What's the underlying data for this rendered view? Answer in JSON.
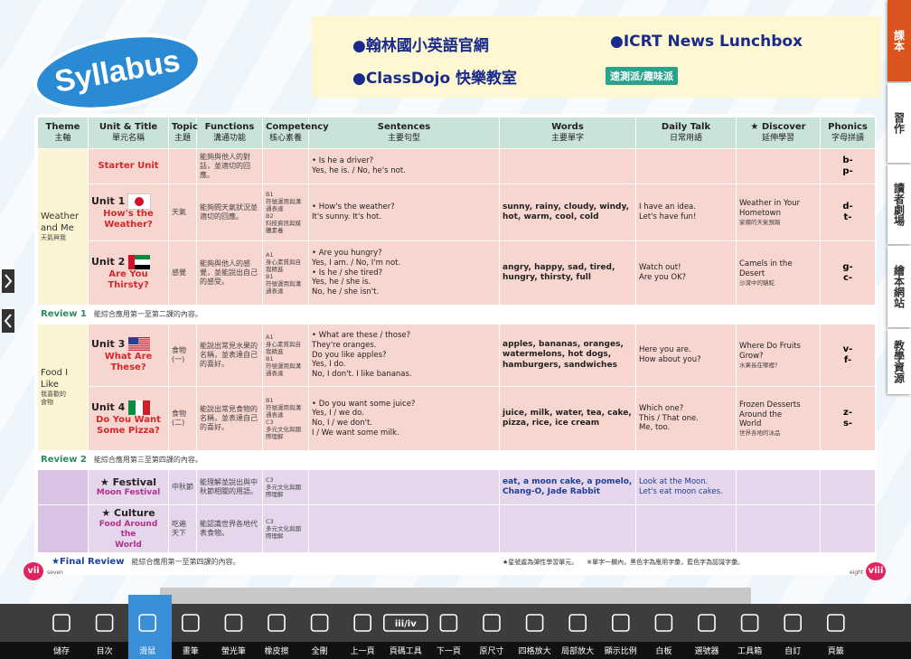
{
  "logo": "Syllabus",
  "links": [
    "●翰林國小英語官網",
    "●ICRT News Lunchbox",
    "●ClassDojo 快樂教室"
  ],
  "quiz_link": "速測派/趣味派",
  "side_tabs": [
    "課本",
    "習作",
    "讀者劇場",
    "繪本網站",
    "教學資源"
  ],
  "table": {
    "header": [
      [
        "Theme",
        "主軸"
      ],
      [
        "Unit & Title",
        "單元名稱"
      ],
      [
        "Topic",
        "主題"
      ],
      [
        "Functions",
        "溝通功能"
      ],
      [
        "Competency",
        "核心素養"
      ],
      [
        "Sentences",
        "主要句型"
      ],
      [
        "Words",
        "主要單字"
      ],
      [
        "Daily Talk",
        "日常用語"
      ],
      [
        "★ Discover",
        "延伸學習"
      ],
      [
        "Phonics",
        "字母拼讀"
      ]
    ],
    "themes": [
      {
        "name": "Weather\nand Me",
        "zh": "天氣與我"
      },
      {
        "name": "Food I\nLike",
        "zh": "我喜歡的\n食物"
      }
    ],
    "units": [
      {
        "title": "Starter Unit",
        "functions": "能夠與他人的對話，並適切的回應。",
        "sentences": "• Is he a driver?\nYes, he is. / No, he's not.",
        "phonics": "b-\np-"
      },
      {
        "unit": "Unit 1",
        "title": "How's the\nWeather?",
        "topic": "天氣",
        "functions": "能夠問天氣狀況並適切的回應。",
        "competency": "B1\n符號運用與溝通表達\nB2\n科技資訊與媒體素養",
        "sentences": "• How's the weather?\nIt's sunny. It's hot.",
        "words": "sunny, rainy, cloudy, windy,\nhot, warm, cool, cold",
        "daily": "I have an idea.\nLet's have fun!",
        "discover": "Weather in Your\nHometown",
        "discover_zh": "家鄉的天氣預報",
        "phonics": "d-\nt-"
      },
      {
        "unit": "Unit 2",
        "title": "Are You\nThirsty?",
        "topic": "感覺",
        "functions": "能夠與他人的感覺，並能說出自己的感受。",
        "competency": "A1\n身心素質與自我精進\nB1\n符號運用與溝通表達",
        "sentences": "• Are you hungry?\nYes, I am. / No, I'm not.\n• Is he / she tired?\nYes, he / she is.\nNo, he / she isn't.",
        "words": "angry, happy, sad, tired,\nhungry, thirsty, full",
        "daily": "Watch out!\nAre you OK?",
        "discover": "Camels in the\nDesert",
        "discover_zh": "沙漠中的駱駝",
        "phonics": "g-\nc-"
      },
      {
        "review": "Review 1",
        "text": "能綜合應用第一至第二課的內容。"
      },
      {
        "unit": "Unit 3",
        "title": "What Are\nThese?",
        "topic": "食物\n(一)",
        "functions": "能說出常見水果的名稱，並表達自己的喜好。",
        "competency": "A1\n身心素質與自我精進\nB1\n符號運用與溝通表達",
        "sentences": "• What are these / those?\nThey're oranges.\nDo you like apples?\nYes, I do.\nNo, I don't. I like bananas.",
        "words": "apples, bananas, oranges,\nwatermelons, hot dogs,\nhamburgers, sandwiches",
        "daily": "Here you are.\nHow about you?",
        "discover": "Where Do Fruits\nGrow?",
        "discover_zh": "水果長在哪裡?",
        "phonics": "v-\nf-"
      },
      {
        "unit": "Unit 4",
        "title": "Do You Want\nSome Pizza?",
        "topic": "食物\n(二)",
        "functions": "能說出常見食物的名稱，並表達自己的喜好。",
        "competency": "B1\n符號運用與溝通表達\nC3\n多元文化與國際理解",
        "sentences": "• Do you want some juice?\nYes, I / we do.\nNo, I / we don't.\nI / We want some milk.",
        "words": "juice, milk, water, tea, cake,\npizza, rice, ice cream",
        "daily": "Which one?\nThis / That one.\nMe, too.",
        "discover": "Frozen Desserts\nAround the\nWorld",
        "discover_zh": "世界各地的冰品",
        "phonics": "z-\ns-"
      },
      {
        "review": "Review 2",
        "text": "能綜合應用第三至第四課的內容。"
      },
      {
        "unit": "★ Festival",
        "title": "Moon Festival",
        "topic": "中秋節",
        "functions": "能理解並說出與中秋節相關的用語。",
        "competency": "C3\n多元文化與國際理解",
        "words": "eat, a moon cake, a pomelo,\nChang-O, Jade Rabbit",
        "daily": "Look at the Moon.\nLet's eat moon cakes."
      },
      {
        "unit": "★ Culture",
        "title": "Food Around the\nWorld",
        "topic": "吃遍\n天下",
        "functions": "能認識世界各地代表食物。",
        "competency": "C3\n多元文化與國際理解"
      }
    ],
    "final": {
      "label": "★Final Review",
      "text": "能綜合應用第一至第四課的內容。"
    },
    "notes": [
      "★星號處為彈性學習單元。",
      "※單字一欄內，黑色字為應用字彙，藍色字為認識字彙。"
    ]
  },
  "pages": {
    "left": "vii",
    "left_word": "seven",
    "right_word": "eight",
    "right": "viii"
  },
  "page_box": "iii/iv",
  "toolbar": [
    "儲存",
    "目次",
    "滑鼠",
    "畫筆",
    "螢光筆",
    "橡皮擦",
    "全刪",
    "上一頁",
    "頁碼工具",
    "下一頁",
    "原尺寸",
    "四格放大",
    "局部放大",
    "顯示比例",
    "白板",
    "選號器",
    "工具箱",
    "自訂",
    "頁籤"
  ]
}
